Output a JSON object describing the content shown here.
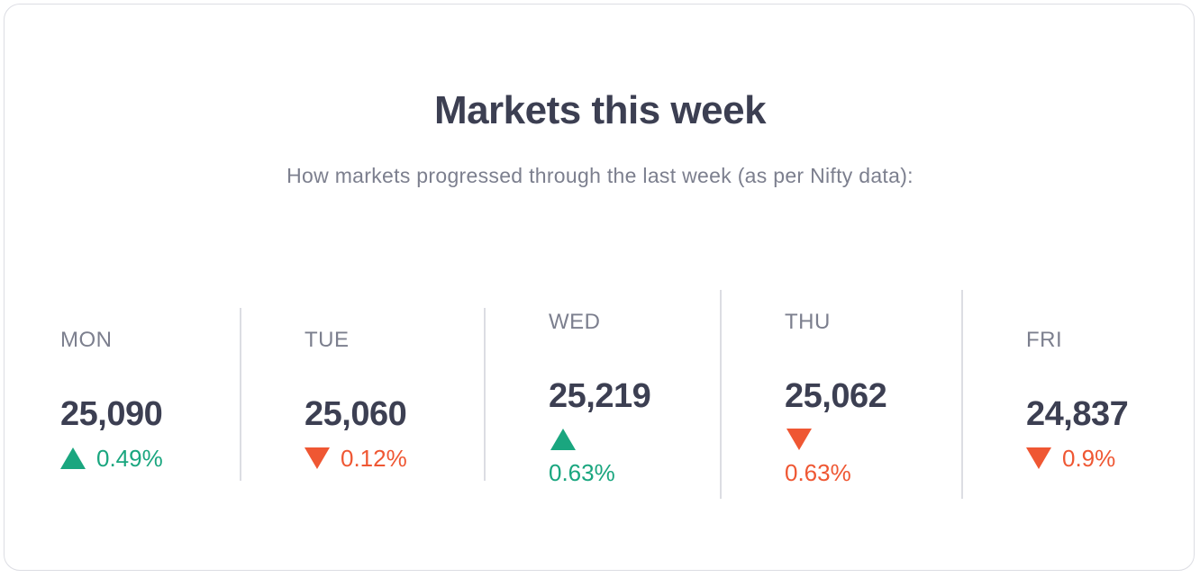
{
  "header": {
    "title": "Markets this week",
    "subtitle": "How markets progressed through the last week (as per Nifty data):"
  },
  "colors": {
    "up": "#1aa67f",
    "down": "#ef5733",
    "text_dark": "#3c3f52",
    "text_muted": "#7c7f8e"
  },
  "days": [
    {
      "day": "MON",
      "value": "25,090",
      "direction": "up",
      "change": "0.49%"
    },
    {
      "day": "TUE",
      "value": "25,060",
      "direction": "down",
      "change": "0.12%"
    },
    {
      "day": "WED",
      "value": "25,219",
      "direction": "up",
      "change": "0.63%"
    },
    {
      "day": "THU",
      "value": "25,062",
      "direction": "down",
      "change": "0.63%"
    },
    {
      "day": "FRI",
      "value": "24,837",
      "direction": "down",
      "change": "0.9%"
    }
  ]
}
